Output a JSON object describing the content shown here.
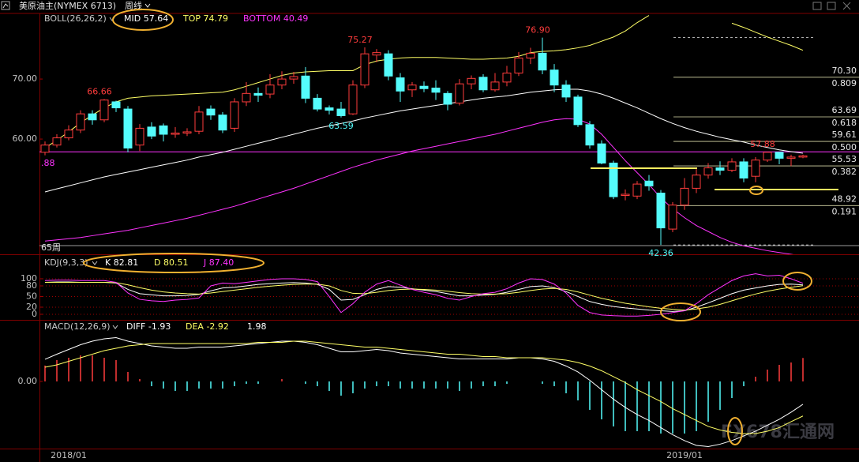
{
  "header": {
    "title": "美原油主(NYMEX 6713)",
    "period": "周线"
  },
  "chart_data": [
    {
      "type": "candlestick",
      "indicator": "BOLL(26,26,2)",
      "categories": [
        null,
        null,
        "2018/01",
        null,
        null,
        null,
        null,
        null,
        null,
        null,
        null,
        null,
        null,
        null,
        null,
        null,
        null,
        null,
        null,
        null,
        null,
        null,
        null,
        null,
        null,
        null,
        null,
        null,
        null,
        null,
        null,
        null,
        null,
        null,
        null,
        null,
        null,
        null,
        null,
        null,
        null,
        null,
        null,
        null,
        null,
        null,
        null,
        null,
        null,
        null,
        null,
        null,
        null,
        null,
        "2019/01",
        null,
        null,
        null,
        null,
        null,
        null,
        null,
        null,
        null,
        null
      ],
      "open": [
        57.8,
        59.0,
        60.2,
        61.5,
        64.2,
        63.2,
        66.2,
        65.0,
        59.0,
        62.0,
        62.2,
        60.8,
        61.0,
        61.3,
        65.0,
        64.0,
        61.8,
        66.2,
        67.6,
        67.5,
        69.0,
        70.0,
        70.5,
        66.8,
        65.2,
        65.0,
        64.2,
        69.0,
        74.0,
        74.2,
        70.2,
        68.2,
        68.8,
        68.5,
        67.6,
        66.0,
        69.2,
        70.3,
        68.2,
        69.5,
        71.0,
        73.5,
        74.3,
        71.5,
        69.0,
        67.0,
        62.4,
        59.2,
        56.0,
        50.6,
        50.5,
        53.0,
        51.0,
        45.0,
        49.0,
        51.8,
        54.0,
        55.2,
        54.8,
        56.2,
        53.8,
        56.5,
        57.8,
        56.8,
        57.0
      ],
      "high": [
        59.6,
        60.8,
        62.3,
        64.8,
        64.8,
        66.66,
        66.4,
        65.5,
        62.5,
        62.8,
        62.6,
        62.0,
        61.8,
        65.5,
        65.6,
        64.5,
        66.8,
        69.5,
        68.6,
        70.8,
        71.3,
        71.2,
        72.0,
        67.5,
        65.6,
        66.2,
        69.8,
        75.27,
        75.0,
        74.8,
        71.0,
        69.5,
        69.6,
        69.8,
        68.0,
        70.0,
        70.6,
        70.8,
        71.0,
        72.2,
        74.5,
        75.2,
        76.9,
        72.5,
        69.8,
        67.4,
        63.0,
        59.8,
        56.4,
        51.6,
        53.0,
        54.0,
        51.5,
        49.5,
        53.5,
        55.0,
        56.0,
        56.3,
        56.8,
        56.8,
        57.0,
        57.88,
        57.85,
        57.4,
        57.4
      ],
      "low": [
        57.3,
        58.6,
        59.8,
        61.0,
        62.4,
        62.8,
        64.5,
        57.8,
        58.0,
        60.0,
        59.6,
        60.2,
        60.5,
        60.8,
        63.2,
        61.0,
        61.2,
        65.5,
        66.2,
        66.8,
        68.3,
        69.2,
        66.0,
        64.6,
        64.1,
        63.59,
        64.0,
        68.5,
        72.8,
        69.8,
        66.2,
        67.0,
        67.8,
        66.5,
        64.8,
        65.6,
        68.3,
        67.8,
        67.9,
        68.8,
        70.5,
        72.5,
        70.8,
        67.8,
        66.2,
        62.0,
        58.4,
        55.8,
        50.0,
        49.8,
        50.0,
        51.4,
        42.36,
        44.5,
        48.2,
        51.0,
        53.4,
        54.0,
        54.5,
        52.8,
        52.8,
        56.2,
        55.8,
        55.5,
        56.8
      ],
      "close": [
        59.0,
        60.2,
        61.5,
        64.2,
        63.2,
        66.5,
        65.2,
        58.5,
        61.8,
        60.5,
        60.8,
        61.0,
        61.2,
        64.5,
        64.0,
        61.5,
        66.2,
        67.6,
        67.3,
        69.0,
        70.0,
        70.4,
        66.8,
        65.0,
        64.8,
        63.9,
        69.0,
        74.2,
        74.4,
        70.5,
        68.0,
        69.0,
        68.4,
        67.8,
        65.8,
        69.2,
        70.1,
        68.2,
        69.5,
        71.0,
        73.5,
        74.3,
        71.5,
        69.0,
        67.0,
        62.4,
        59.0,
        56.0,
        50.4,
        50.8,
        52.5,
        52.2,
        45.2,
        49.0,
        51.8,
        54.0,
        55.2,
        54.8,
        56.2,
        53.5,
        56.5,
        57.8,
        56.8,
        57.0,
        57.2
      ],
      "high_labels": [
        null,
        null,
        null,
        null,
        null,
        "66.66",
        null,
        null,
        null,
        null,
        null,
        null,
        null,
        null,
        null,
        null,
        null,
        null,
        null,
        null,
        null,
        null,
        null,
        null,
        null,
        null,
        null,
        "75.27",
        null,
        null,
        null,
        null,
        null,
        null,
        null,
        null,
        null,
        null,
        null,
        null,
        null,
        null,
        "76.90",
        null,
        null,
        null,
        null,
        null,
        null,
        null,
        null,
        null,
        null,
        null,
        null,
        null,
        null,
        null,
        null,
        null,
        null,
        "57.88",
        null,
        null,
        null
      ],
      "low_labels": [
        null,
        null,
        null,
        null,
        null,
        null,
        null,
        null,
        null,
        null,
        null,
        null,
        null,
        null,
        null,
        null,
        null,
        null,
        null,
        null,
        null,
        null,
        null,
        null,
        null,
        "63.59",
        null,
        null,
        null,
        null,
        null,
        null,
        null,
        null,
        null,
        null,
        null,
        null,
        null,
        null,
        null,
        null,
        null,
        null,
        null,
        null,
        null,
        null,
        null,
        null,
        null,
        null,
        "42.36",
        null,
        null,
        null,
        null,
        null,
        null,
        null,
        null,
        null,
        null,
        null,
        null
      ],
      "up_color": "#ff3c3c",
      "down_color": "#54fcfc",
      "series": [
        {
          "label": "MID 57.64",
          "color": "#ffffff",
          "values": [
            51.2,
            51.7,
            52.2,
            52.7,
            53.2,
            53.7,
            54.1,
            54.5,
            54.9,
            55.3,
            55.7,
            56.1,
            56.5,
            57.0,
            57.4,
            57.8,
            58.3,
            58.8,
            59.3,
            59.8,
            60.3,
            60.8,
            61.3,
            61.8,
            62.2,
            62.6,
            63.0,
            63.5,
            63.9,
            64.3,
            64.7,
            65.0,
            65.3,
            65.6,
            65.9,
            66.2,
            66.5,
            66.8,
            67.0,
            67.2,
            67.5,
            67.8,
            68.0,
            68.2,
            68.3,
            68.3,
            68.0,
            67.5,
            66.8,
            66.0,
            65.2,
            64.3,
            63.4,
            62.6,
            61.9,
            61.3,
            60.8,
            60.3,
            59.9,
            59.5,
            59.0,
            58.6,
            58.2,
            57.9,
            57.64
          ]
        },
        {
          "label": "TOP 74.79",
          "color": "#ffff66",
          "values": [
            58.5,
            59.8,
            61.2,
            62.7,
            64.0,
            65.2,
            66.2,
            66.8,
            67.0,
            67.2,
            67.3,
            67.4,
            67.5,
            67.6,
            67.7,
            67.8,
            68.2,
            68.8,
            69.4,
            70.0,
            70.6,
            71.0,
            71.2,
            71.3,
            71.4,
            71.4,
            71.4,
            72.4,
            73.0,
            73.3,
            73.5,
            73.6,
            73.6,
            73.6,
            73.5,
            73.4,
            73.3,
            73.3,
            73.4,
            73.5,
            73.8,
            74.4,
            74.6,
            74.7,
            74.9,
            75.2,
            75.6,
            76.3,
            77.0,
            78.0,
            79.4,
            80.6,
            null,
            null,
            null,
            null,
            null,
            null,
            79.3,
            78.6,
            77.8,
            77.0,
            76.3,
            75.6,
            74.79
          ]
        },
        {
          "label": "BOTTOM 40.49",
          "color": "#ff33ff",
          "values": [
            43.0,
            43.2,
            43.4,
            43.6,
            43.9,
            44.2,
            44.5,
            44.8,
            45.2,
            45.6,
            46.0,
            46.4,
            46.8,
            47.3,
            47.8,
            48.3,
            48.8,
            49.4,
            50.0,
            50.6,
            51.2,
            51.8,
            52.5,
            53.2,
            53.9,
            54.6,
            55.3,
            55.9,
            56.5,
            57.0,
            57.5,
            58.0,
            58.4,
            58.8,
            59.2,
            59.6,
            60.0,
            60.4,
            60.8,
            61.3,
            61.8,
            62.3,
            62.8,
            63.2,
            63.4,
            63.3,
            62.5,
            60.8,
            58.6,
            56.4,
            54.4,
            52.4,
            50.2,
            48.4,
            46.9,
            45.6,
            44.6,
            43.6,
            42.8,
            42.2,
            41.8,
            41.4,
            41.1,
            40.8,
            40.49
          ]
        }
      ],
      "ylim": [
        40.8,
        80.8
      ],
      "yticks": [
        {
          "value": 70,
          "label": "70.00"
        },
        {
          "value": 60,
          "label": "60.00"
        }
      ],
      "grid": false,
      "hline": {
        "value": 57.88,
        "label": ".88",
        "color": "#ff33ff"
      },
      "fib_levels": [
        {
          "value": 70.3,
          "label": "70.30",
          "ratio": "0.809"
        },
        {
          "value": 63.69,
          "label": "63.69",
          "ratio": "0.618"
        },
        {
          "value": 59.61,
          "label": "59.61",
          "ratio": "0.500"
        },
        {
          "value": 55.53,
          "label": "55.53",
          "ratio": "0.382"
        },
        {
          "value": 48.92,
          "label": "48.92",
          "ratio": "0.191"
        }
      ],
      "period_label": "65周"
    },
    {
      "type": "kdj",
      "indicator": "KDJ(9,3,3)",
      "series": [
        {
          "label": "K 82.81",
          "color": "#ffffff",
          "values": [
            90,
            91,
            91,
            90,
            90,
            90,
            88,
            70,
            58,
            55,
            52,
            52,
            53,
            56,
            66,
            74,
            76,
            80,
            84,
            86,
            88,
            89,
            88,
            84,
            70,
            40,
            42,
            55,
            70,
            78,
            76,
            72,
            68,
            64,
            58,
            52,
            52,
            54,
            56,
            62,
            70,
            78,
            80,
            75,
            64,
            50,
            36,
            28,
            22,
            18,
            15,
            12,
            10,
            8,
            10,
            20,
            32,
            45,
            58,
            68,
            74,
            80,
            84,
            85,
            82.81
          ]
        },
        {
          "label": "D 80.51",
          "color": "#ffff66",
          "values": [
            90,
            90,
            90,
            90,
            90,
            90,
            89,
            83,
            75,
            68,
            63,
            60,
            58,
            57,
            60,
            64,
            68,
            72,
            76,
            79,
            82,
            84,
            85,
            85,
            80,
            67,
            59,
            58,
            62,
            67,
            70,
            71,
            70,
            68,
            65,
            61,
            58,
            57,
            57,
            58,
            62,
            67,
            71,
            73,
            70,
            63,
            54,
            45,
            38,
            31,
            26,
            21,
            17,
            14,
            12,
            15,
            20,
            28,
            38,
            48,
            57,
            65,
            71,
            76,
            80.51
          ]
        },
        {
          "label": "J 87.40",
          "color": "#ff33ff",
          "values": [
            95,
            96,
            96,
            95,
            95,
            95,
            90,
            60,
            42,
            38,
            36,
            40,
            42,
            46,
            80,
            88,
            86,
            90,
            94,
            98,
            100,
            100,
            98,
            92,
            50,
            5,
            30,
            62,
            85,
            95,
            82,
            70,
            62,
            55,
            45,
            40,
            50,
            58,
            62,
            72,
            88,
            100,
            98,
            85,
            60,
            25,
            5,
            -2,
            -4,
            -5,
            -5,
            -3,
            0,
            5,
            10,
            30,
            55,
            75,
            95,
            108,
            114,
            108,
            110,
            100,
            87.4
          ]
        }
      ],
      "ylim": [
        -15.6,
        166.6
      ],
      "yticks": [
        100,
        80,
        50,
        20,
        0
      ],
      "grid": true
    },
    {
      "type": "macd",
      "indicator": "MACD(12,26,9)",
      "series": [
        {
          "label": "DIFF -1.93",
          "color": "#ffffff",
          "values": [
            1.87,
            2.3,
            2.7,
            3.1,
            3.4,
            3.6,
            3.7,
            3.4,
            3.2,
            3.0,
            2.9,
            2.8,
            2.8,
            2.9,
            2.9,
            2.9,
            3.0,
            3.1,
            3.2,
            3.3,
            3.4,
            3.4,
            3.3,
            3.1,
            2.8,
            2.5,
            2.5,
            2.6,
            2.7,
            2.6,
            2.4,
            2.3,
            2.2,
            2.1,
            2.0,
            1.9,
            1.9,
            1.9,
            1.9,
            1.9,
            2.0,
            2.0,
            1.9,
            1.7,
            1.3,
            0.8,
            0.1,
            -0.7,
            -1.5,
            -2.2,
            -2.8,
            -3.3,
            -3.9,
            -4.5,
            -5.0,
            -5.4,
            -5.5,
            -5.3,
            -5.0,
            -4.6,
            -4.2,
            -3.7,
            -3.2,
            -2.6,
            -1.93
          ]
        },
        {
          "label": "DEA -2.92",
          "color": "#ffff66",
          "values": [
            1.2,
            1.4,
            1.7,
            2.0,
            2.3,
            2.6,
            2.8,
            3.0,
            3.1,
            3.2,
            3.2,
            3.2,
            3.2,
            3.2,
            3.2,
            3.2,
            3.2,
            3.2,
            3.3,
            3.3,
            3.3,
            3.4,
            3.4,
            3.3,
            3.2,
            3.1,
            3.0,
            2.9,
            2.9,
            2.8,
            2.7,
            2.6,
            2.5,
            2.4,
            2.3,
            2.3,
            2.2,
            2.1,
            2.1,
            2.0,
            2.0,
            2.0,
            2.0,
            1.9,
            1.8,
            1.6,
            1.3,
            0.9,
            0.4,
            -0.1,
            -0.7,
            -1.2,
            -1.7,
            -2.3,
            -2.8,
            -3.3,
            -3.8,
            -4.1,
            -4.3,
            -4.4,
            -4.4,
            -4.2,
            -3.9,
            -3.4,
            -2.92
          ]
        }
      ],
      "bars": {
        "label": "1.98",
        "color": "#ffffff",
        "up_color": "#ff3c3c",
        "down_color": "#54fcfc",
        "values": [
          1.34,
          1.8,
          2.0,
          2.2,
          2.2,
          2.0,
          1.8,
          0.8,
          0.2,
          -0.4,
          -0.6,
          -0.8,
          -0.8,
          -0.6,
          -0.6,
          -0.6,
          -0.4,
          -0.2,
          -0.2,
          0,
          0.2,
          0,
          -0.2,
          -0.4,
          -0.8,
          -1.2,
          -1.0,
          -0.6,
          -0.4,
          -0.4,
          -0.6,
          -0.6,
          -0.6,
          -0.6,
          -0.6,
          -0.8,
          -0.6,
          -0.4,
          -0.4,
          -0.2,
          0,
          0,
          -0.2,
          -0.4,
          -1.0,
          -1.6,
          -2.4,
          -3.2,
          -3.8,
          -4.2,
          -4.2,
          -4.2,
          -4.4,
          -4.4,
          -4.4,
          -4.2,
          -3.4,
          -2.4,
          -1.4,
          -0.4,
          0.4,
          1.0,
          1.4,
          1.6,
          1.98
        ]
      },
      "ylim": [
        -5.67,
        5.2
      ],
      "yticks": [
        {
          "value": 0,
          "label": "0.00"
        }
      ],
      "grid": false
    }
  ],
  "watermark": "FX678汇通网"
}
